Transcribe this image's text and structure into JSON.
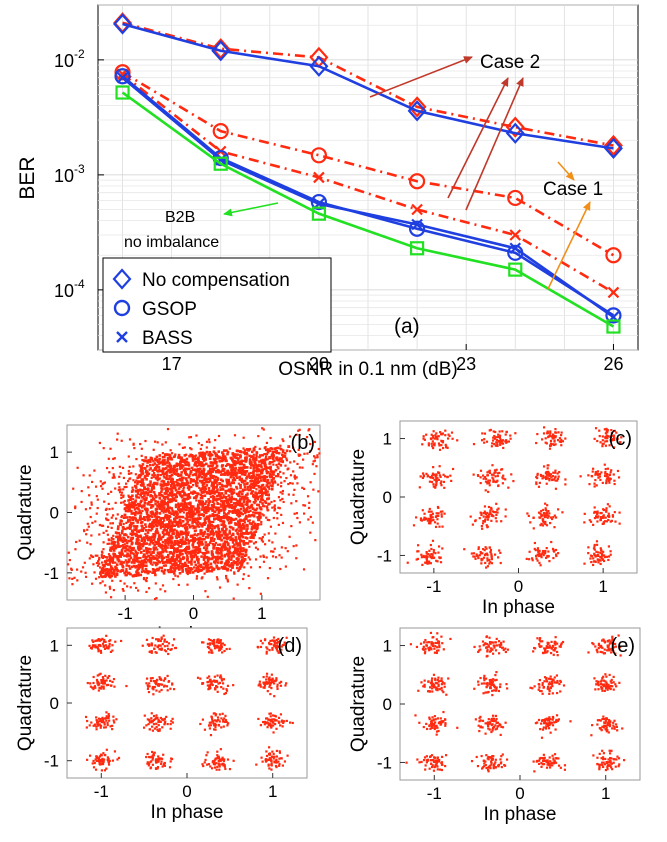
{
  "colors": {
    "no_comp": "#1f3fe0",
    "case_red": "#ff2a10",
    "b2b": "#22e022",
    "arrow_red": "#c0392b",
    "arrow_orange": "#f0901a",
    "scatter": "#ff2a10"
  },
  "chart_data": [
    {
      "id": "a",
      "type": "line",
      "panel_label": "(a)",
      "xlabel": "OSNR in 0.1 nm (dB)",
      "ylabel": "BER",
      "yscale": "log",
      "xlim": [
        15.5,
        26.5
      ],
      "ylim": [
        3e-05,
        0.03
      ],
      "xticks": [
        17,
        20,
        23,
        26
      ],
      "yticks": [
        {
          "value": 0.0001,
          "base": "10",
          "exp": "-4"
        },
        {
          "value": 0.001,
          "base": "10",
          "exp": "-3"
        },
        {
          "value": 0.01,
          "base": "10",
          "exp": "-2"
        }
      ],
      "grid": true,
      "legend_position": "bottom-left",
      "legend": [
        {
          "label": "No compensation",
          "marker": "diamond"
        },
        {
          "label": "GSOP",
          "marker": "circle"
        },
        {
          "label": "BASS",
          "marker": "x"
        }
      ],
      "x": [
        16,
        18,
        20,
        22,
        24,
        26
      ],
      "series": [
        {
          "case": "Case 2",
          "method": "No compensation",
          "style": "dashdot",
          "color": "case_red",
          "marker": "diamond",
          "values": [
            0.021,
            0.0125,
            0.0105,
            0.0039,
            0.0026,
            0.0018
          ]
        },
        {
          "case": "Case 2",
          "method": "GSOP",
          "style": "solid",
          "color": "no_comp",
          "marker": "diamond",
          "values": [
            0.0205,
            0.012,
            0.0088,
            0.0036,
            0.0023,
            0.0017
          ]
        },
        {
          "case": "Case 1",
          "method": "No compensation",
          "style": "dashdot",
          "color": "case_red",
          "marker": "circle",
          "values": [
            0.0078,
            0.0024,
            0.00148,
            0.00088,
            0.00063,
            0.0002
          ]
        },
        {
          "case": "Case 1",
          "method": "BASS",
          "style": "dashdot",
          "color": "case_red",
          "marker": "x",
          "values": [
            0.0075,
            0.0016,
            0.00095,
            0.0005,
            0.0003,
            9.5e-05
          ]
        },
        {
          "case": "",
          "method": "GSOP",
          "style": "solid",
          "color": "no_comp",
          "marker": "circle",
          "values": [
            0.0072,
            0.0014,
            0.00058,
            0.00034,
            0.00021,
            6e-05
          ]
        },
        {
          "case": "",
          "method": "BASS",
          "style": "solid",
          "color": "no_comp",
          "marker": "x",
          "values": [
            0.007,
            0.00135,
            0.00056,
            0.00037,
            0.00023,
            5.8e-05
          ]
        },
        {
          "case": "B2B",
          "method": "no imbalance",
          "style": "solid",
          "color": "b2b",
          "marker": "square",
          "values": [
            0.0052,
            0.00125,
            0.00046,
            0.00023,
            0.00015,
            4.8e-05
          ]
        }
      ],
      "annotations": {
        "case2": "Case 2",
        "case1": "Case 1",
        "b2b_line1": "B2B",
        "b2b_line2": "no imbalance"
      }
    },
    {
      "id": "b",
      "type": "scatter",
      "panel_label": "(b)",
      "xlabel": "In phase",
      "ylabel": "Quadrature",
      "xlim": [
        -1.85,
        1.85
      ],
      "ylim": [
        -1.45,
        1.45
      ],
      "xticks": [
        -1,
        0,
        1
      ],
      "yticks": [
        -1,
        0,
        1
      ],
      "constellation": "16QAM (distorted, unresolved)",
      "skew": 0.62,
      "spread": 0.42,
      "scale": 0.78
    },
    {
      "id": "c",
      "type": "scatter",
      "panel_label": "(c)",
      "xlabel": "In phase",
      "ylabel": "Quadrature",
      "xlim": [
        -1.4,
        1.4
      ],
      "ylim": [
        -1.3,
        1.3
      ],
      "xticks": [
        -1,
        0,
        1
      ],
      "yticks": [
        -1,
        0,
        1
      ],
      "constellation": "16QAM (mildly skewed)",
      "skew": 0.1,
      "spread": 0.085,
      "scale": 1.0
    },
    {
      "id": "d",
      "type": "scatter",
      "panel_label": "(d)",
      "xlabel": "In phase",
      "ylabel": "Quadrature",
      "xlim": [
        -1.4,
        1.4
      ],
      "ylim": [
        -1.3,
        1.3
      ],
      "xticks": [
        -1,
        0,
        1
      ],
      "yticks": [
        -1,
        0,
        1
      ],
      "constellation": "16QAM",
      "skew": 0.0,
      "spread": 0.075,
      "scale": 1.0
    },
    {
      "id": "e",
      "type": "scatter",
      "panel_label": "(e)",
      "xlabel": "In phase",
      "ylabel": "Quadrature",
      "xlim": [
        -1.4,
        1.4
      ],
      "ylim": [
        -1.3,
        1.3
      ],
      "xticks": [
        -1,
        0,
        1
      ],
      "yticks": [
        -1,
        0,
        1
      ],
      "constellation": "16QAM",
      "skew": 0.0,
      "spread": 0.075,
      "scale": 1.0
    }
  ]
}
